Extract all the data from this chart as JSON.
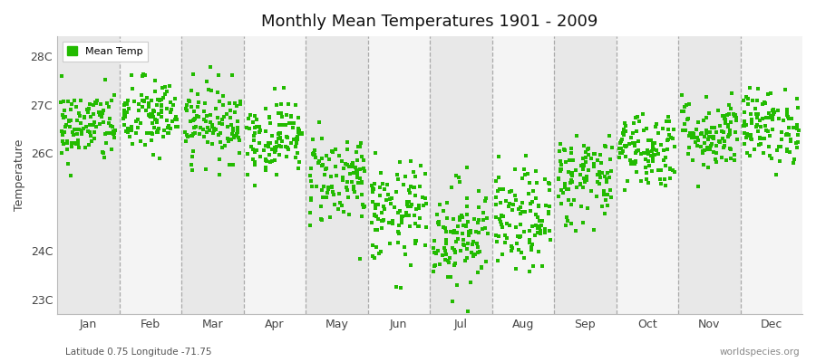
{
  "title": "Monthly Mean Temperatures 1901 - 2009",
  "ylabel": "Temperature",
  "xlabel_bottom_left": "Latitude 0.75 Longitude -71.75",
  "xlabel_bottom_right": "worldspecies.org",
  "legend_label": "Mean Temp",
  "background_color": "#ffffff",
  "plot_bg_color": "#ffffff",
  "band_color_dark": "#e8e8e8",
  "band_color_light": "#f4f4f4",
  "dot_color": "#22bb00",
  "dashed_line_color": "#aaaaaa",
  "ylim": [
    22.7,
    28.4
  ],
  "yticks": [
    23,
    24,
    25,
    26,
    27,
    28
  ],
  "ytick_labels": [
    "23C",
    "24C",
    "",
    "26C",
    "27C",
    "28C"
  ],
  "months": [
    "Jan",
    "Feb",
    "Mar",
    "Apr",
    "May",
    "Jun",
    "Jul",
    "Aug",
    "Sep",
    "Oct",
    "Nov",
    "Dec"
  ],
  "monthly_means": [
    26.55,
    26.75,
    26.65,
    26.35,
    25.5,
    24.75,
    24.35,
    24.6,
    25.5,
    26.1,
    26.4,
    26.55
  ],
  "monthly_stds": [
    0.38,
    0.4,
    0.4,
    0.38,
    0.48,
    0.52,
    0.55,
    0.52,
    0.48,
    0.4,
    0.38,
    0.38
  ],
  "n_years": 109,
  "seed": 42,
  "marker_size": 5,
  "dpi": 100,
  "figsize": [
    9.0,
    4.0
  ]
}
